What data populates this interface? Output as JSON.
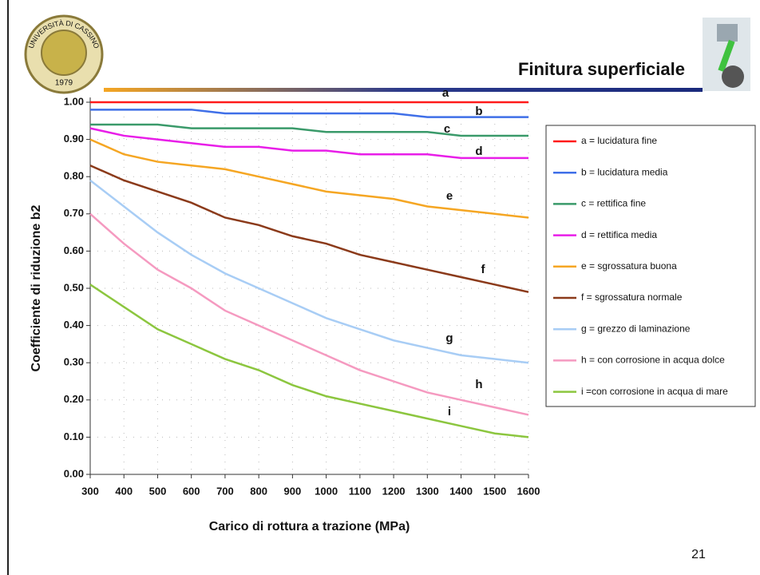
{
  "slide": {
    "title": "Finitura superficiale",
    "page_number": "21",
    "logo": {
      "ring_text": "UNIVERSITÀ DI CASSINO",
      "year": "1979"
    }
  },
  "chart_data": {
    "type": "line",
    "x_label": "Carico di rottura a trazione (MPa)",
    "y_label": "Coefficiente di riduzione b2",
    "x": [
      300,
      400,
      500,
      600,
      700,
      800,
      900,
      1000,
      1100,
      1200,
      1300,
      1400,
      1500,
      1600
    ],
    "xlim": [
      300,
      1600
    ],
    "xticks": [
      300,
      400,
      500,
      600,
      700,
      800,
      900,
      1000,
      1100,
      1200,
      1300,
      1400,
      1500,
      1600
    ],
    "ylim": [
      0,
      1
    ],
    "yticks": [
      {
        "value": 0,
        "label": "0.00"
      },
      {
        "value": 0.1,
        "label": "0.10"
      },
      {
        "value": 0.2,
        "label": "0.20"
      },
      {
        "value": 0.3,
        "label": "0.30"
      },
      {
        "value": 0.4,
        "label": "0.40"
      },
      {
        "value": 0.5,
        "label": "0.50"
      },
      {
        "value": 0.6,
        "label": "0.60"
      },
      {
        "value": 0.7,
        "label": "0.70"
      },
      {
        "value": 0.8,
        "label": "0.80"
      },
      {
        "value": 0.9,
        "label": "0.90"
      },
      {
        "value": 1,
        "label": "1.00"
      }
    ],
    "grid": true,
    "legend": "right",
    "series": [
      {
        "name": "a = lucidatura fine",
        "label": "a",
        "color": "#ff1a1a",
        "values": [
          1.0,
          1.0,
          1.0,
          1.0,
          1.0,
          1.0,
          1.0,
          1.0,
          1.0,
          1.0,
          1.0,
          1.0,
          1.0,
          1.0
        ]
      },
      {
        "name": "b = lucidatura media",
        "label": "b",
        "color": "#3f6fe8",
        "values": [
          0.98,
          0.98,
          0.98,
          0.98,
          0.97,
          0.97,
          0.97,
          0.97,
          0.97,
          0.97,
          0.96,
          0.96,
          0.96,
          0.96
        ]
      },
      {
        "name": "c = rettifica fine",
        "label": "c",
        "color": "#3a9a6a",
        "values": [
          0.94,
          0.94,
          0.94,
          0.93,
          0.93,
          0.93,
          0.93,
          0.92,
          0.92,
          0.92,
          0.92,
          0.91,
          0.91,
          0.91
        ]
      },
      {
        "name": "d = rettifica media",
        "label": "d",
        "color": "#e81ee8",
        "values": [
          0.93,
          0.91,
          0.9,
          0.89,
          0.88,
          0.88,
          0.87,
          0.87,
          0.86,
          0.86,
          0.86,
          0.85,
          0.85,
          0.85
        ]
      },
      {
        "name": "e = sgrossatura buona",
        "label": "e",
        "color": "#f5a623",
        "values": [
          0.9,
          0.86,
          0.84,
          0.83,
          0.82,
          0.8,
          0.78,
          0.76,
          0.75,
          0.74,
          0.72,
          0.71,
          0.7,
          0.69
        ]
      },
      {
        "name": "f = sgrossatura normale",
        "label": "f",
        "color": "#8b3a1a",
        "values": [
          0.83,
          0.79,
          0.76,
          0.73,
          0.69,
          0.67,
          0.64,
          0.62,
          0.59,
          0.57,
          0.55,
          0.53,
          0.51,
          0.49
        ]
      },
      {
        "name": "g = grezzo di laminazione",
        "label": "g",
        "color": "#a8cdf5",
        "values": [
          0.79,
          0.72,
          0.65,
          0.59,
          0.54,
          0.5,
          0.46,
          0.42,
          0.39,
          0.36,
          0.34,
          0.32,
          0.31,
          0.3
        ]
      },
      {
        "name": "h = con corrosione in acqua dolce",
        "label": "h",
        "color": "#f59ac0",
        "values": [
          0.7,
          0.62,
          0.55,
          0.5,
          0.44,
          0.4,
          0.36,
          0.32,
          0.28,
          0.25,
          0.22,
          0.2,
          0.18,
          0.16
        ]
      },
      {
        "name": "i =con corrosione in acqua di mare",
        "label": "i",
        "color": "#8cc63f",
        "values": [
          0.51,
          0.45,
          0.39,
          0.35,
          0.31,
          0.28,
          0.24,
          0.21,
          0.19,
          0.17,
          0.15,
          0.13,
          0.11,
          0.1
        ]
      }
    ]
  }
}
